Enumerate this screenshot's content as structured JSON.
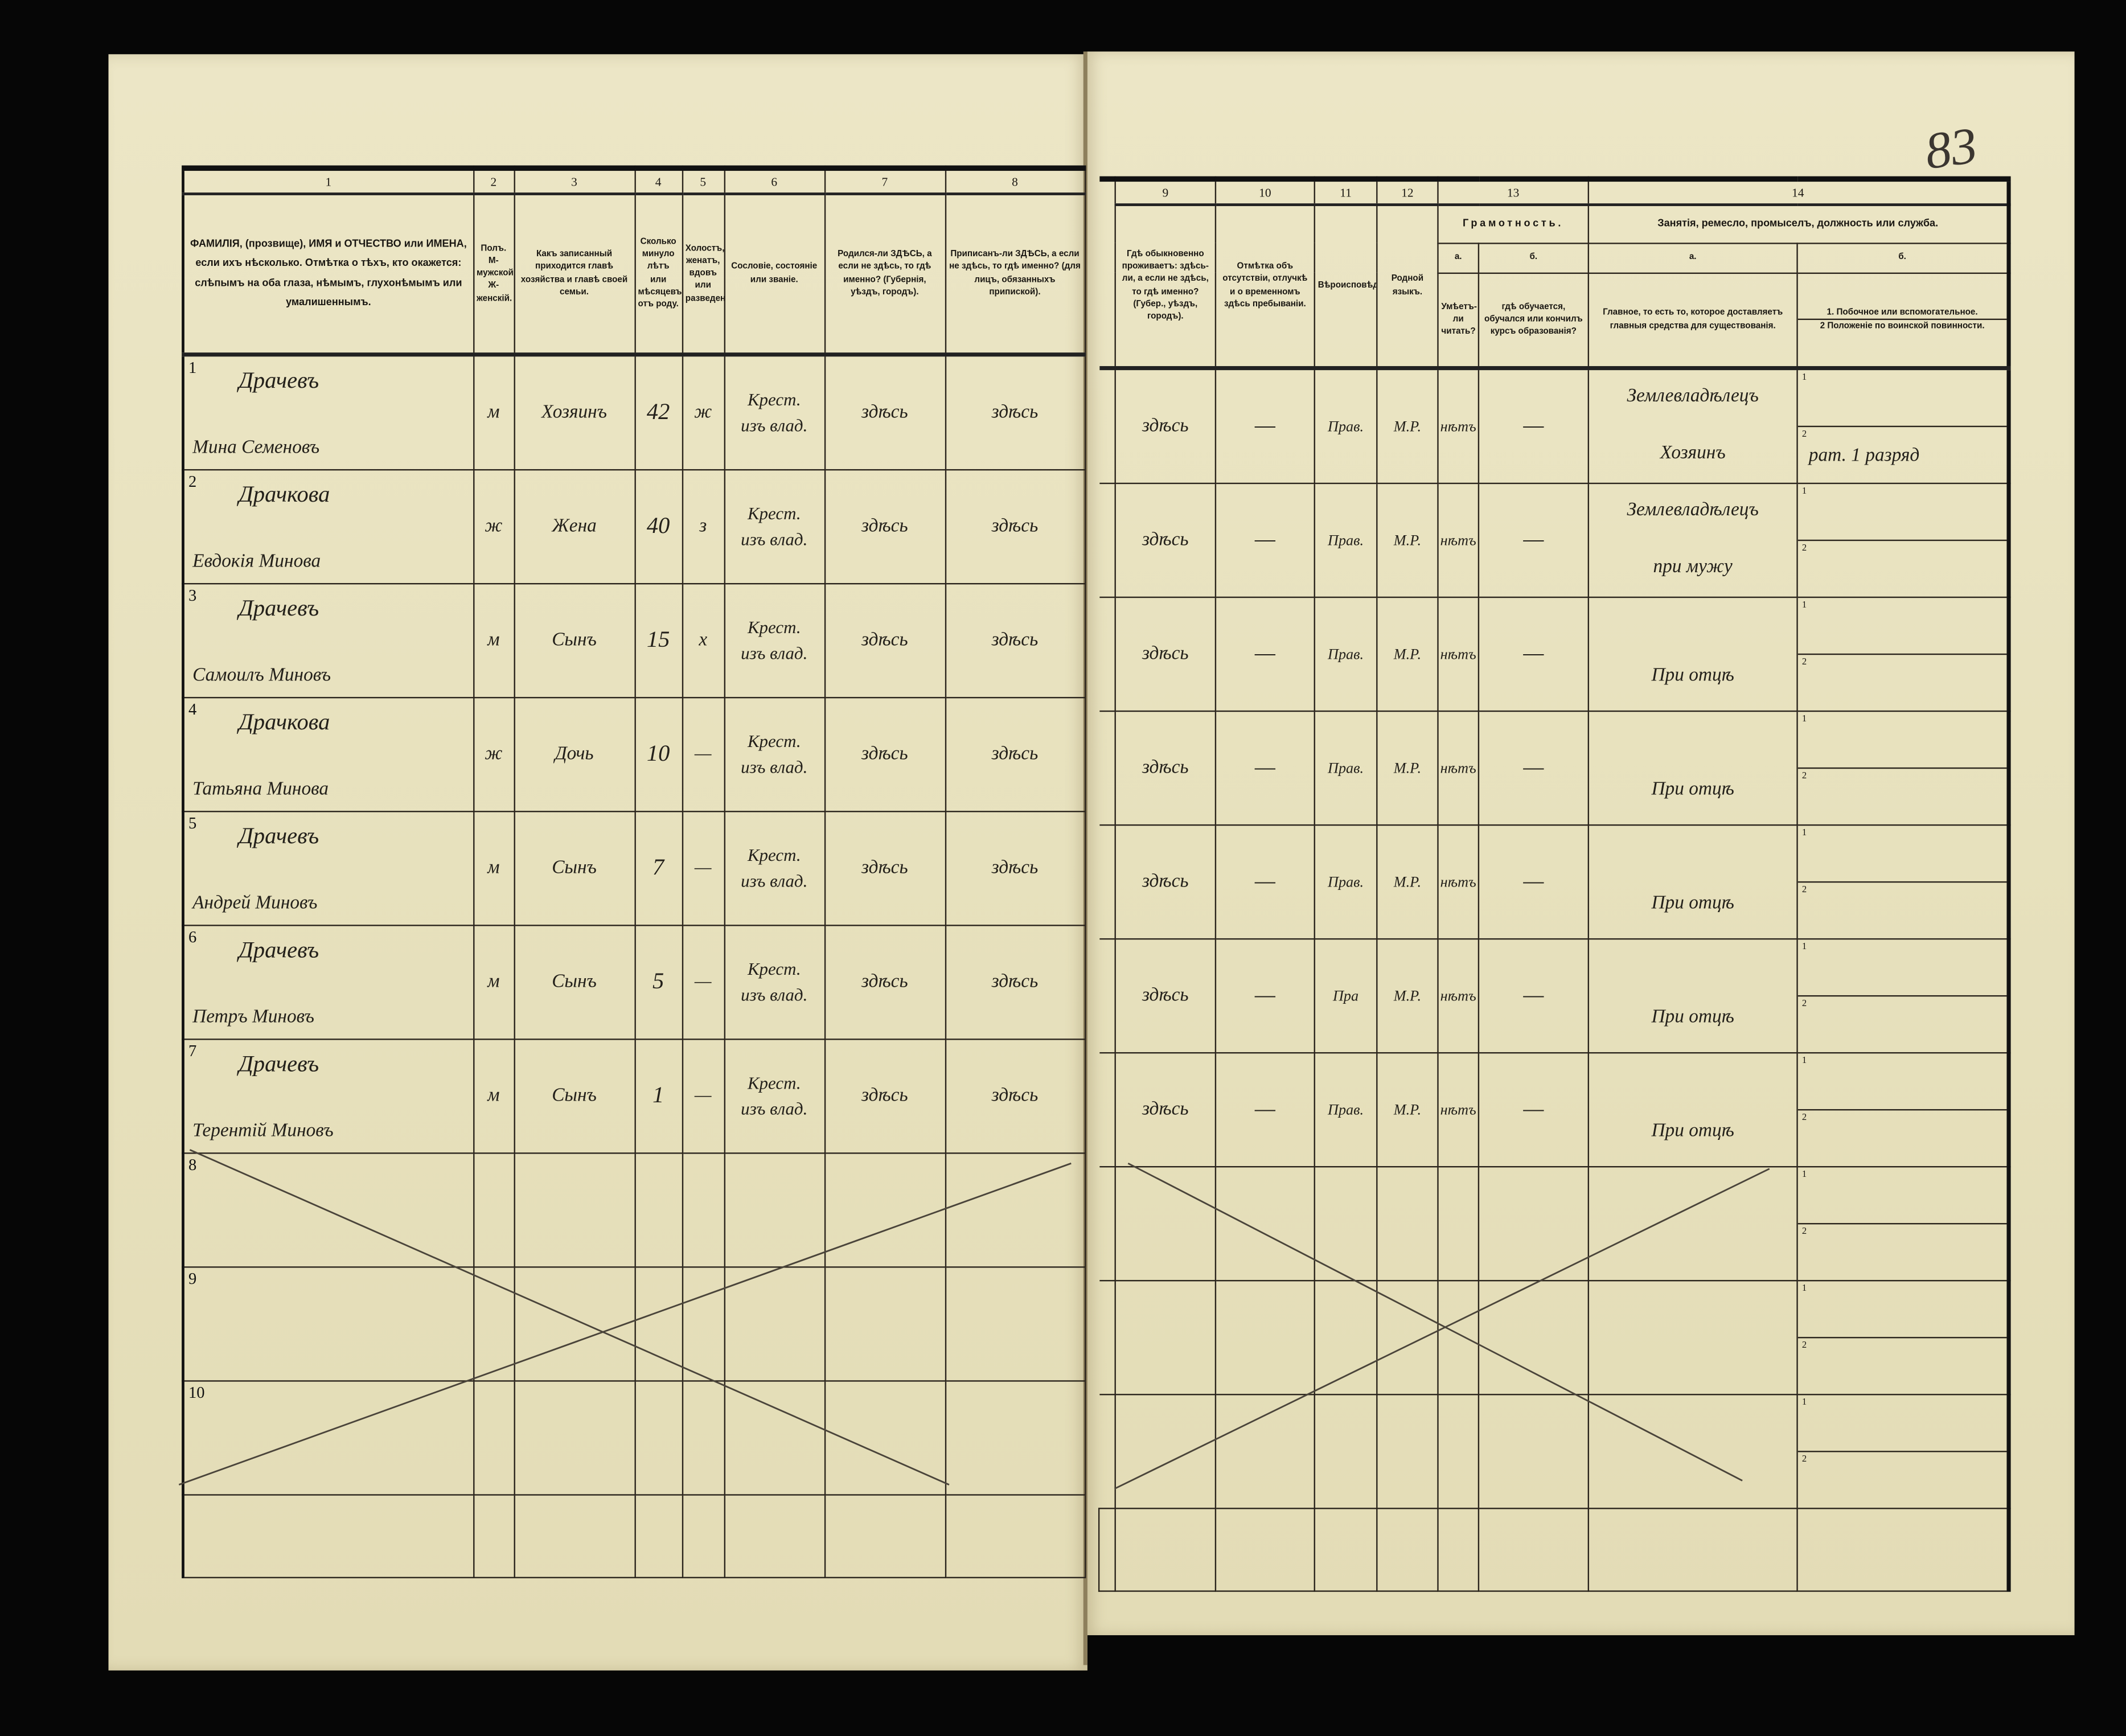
{
  "page_number": "83",
  "left_header": {
    "col_numbers": [
      "1",
      "2",
      "3",
      "4",
      "5",
      "6",
      "7",
      "8"
    ],
    "col1": "ФАМИЛІЯ, (прозвище), ИМЯ и ОТЧЕСТВО или ИМЕНА, если ихъ нѣсколько. Отмѣтка о тѣхъ, кто окажется: слѣпымъ на оба глаза, нѣмымъ, глухонѣмымъ или умалишеннымъ.",
    "col2": "Полъ. М-мужской. Ж-женскій.",
    "col3": "Какъ записанный приходится главѣ хозяйства и главѣ своей семьи.",
    "col4": "Сколько минуло лѣтъ или мѣсяцевъ отъ роду.",
    "col5": "Холостъ, женатъ, вдовъ или разведенъ.",
    "col6": "Сословіе, состояніе или званіе.",
    "col7": "Родился-ли ЗДѢСЬ, а если не здѣсь, то гдѣ именно? (Губернія, уѣздъ, городъ).",
    "col8": "Приписанъ-ли ЗДѢСЬ, а если не здѣсь, то гдѣ именно? (для лицъ, обязанныхъ припиской)."
  },
  "right_header": {
    "col_numbers": [
      "9",
      "10",
      "11",
      "12",
      "13",
      "14"
    ],
    "col9": "Гдѣ обыкновенно проживаетъ: здѣсь-ли, а если не здѣсь, то гдѣ именно? (Губер., уѣздъ, городъ).",
    "col10": "Отмѣтка объ отсутствіи, отлучкѣ и о временномъ здѣсь пребываніи.",
    "col11": "Вѣроисповѣданіе.",
    "col12": "Родной языкъ.",
    "col13": "Грамотность.",
    "col13a_label": "а.",
    "col13a": "Умѣетъ-ли читать?",
    "col13b_label": "б.",
    "col13b": "гдѣ обучается, обучался или кончилъ курсъ образованія?",
    "col14": "Занятія, ремесло, промыселъ, должность или служба.",
    "col14a_label": "а.",
    "col14a": "Главное, то есть то, которое доставляетъ главныя средства для существованія.",
    "col14b_label": "б.",
    "col14b_1": "1. Побочное или вспомогательное.",
    "col14b_2": "2 Положеніе по воинской повинности."
  },
  "sub_labels": [
    "1",
    "2"
  ],
  "rows": [
    {
      "n": "1",
      "surname": "Драчевъ",
      "given": "Мина Семеновъ",
      "sex": "м",
      "relation": "Хозяинъ",
      "age": "42",
      "marital": "ж",
      "estate": "Крест. изъ влад.",
      "born": "здѣсь",
      "registered": "здѣсь",
      "residence": "здѣсь",
      "absence": "—",
      "religion": "Прав.",
      "language": "М.Р.",
      "literate": "нѣтъ",
      "education": "—",
      "occupation": "Землевладѣлецъ",
      "occupation2": "Хозяинъ",
      "side_occupation": "",
      "military": "рат. 1 разряд"
    },
    {
      "n": "2",
      "surname": "Драчкова",
      "given": "Евдокія Минова",
      "sex": "ж",
      "relation": "Жена",
      "age": "40",
      "marital": "з",
      "estate": "Крест. изъ влад.",
      "born": "здѣсь",
      "registered": "здѣсь",
      "residence": "здѣсь",
      "absence": "—",
      "religion": "Прав.",
      "language": "М.Р.",
      "literate": "нѣтъ",
      "education": "—",
      "occupation": "Землевладѣлецъ",
      "occupation2": "при мужу",
      "side_occupation": "",
      "military": ""
    },
    {
      "n": "3",
      "surname": "Драчевъ",
      "given": "Самоилъ Миновъ",
      "sex": "м",
      "relation": "Сынъ",
      "age": "15",
      "marital": "х",
      "estate": "Крест. изъ влад.",
      "born": "здѣсь",
      "registered": "здѣсь",
      "residence": "здѣсь",
      "absence": "—",
      "religion": "Прав.",
      "language": "М.Р.",
      "literate": "нѣтъ",
      "education": "—",
      "occupation": "",
      "occupation2": "При отцѣ",
      "side_occupation": "",
      "military": ""
    },
    {
      "n": "4",
      "surname": "Драчкова",
      "given": "Татьяна Минова",
      "sex": "ж",
      "relation": "Дочь",
      "age": "10",
      "marital": "—",
      "estate": "Крест. изъ влад.",
      "born": "здѣсь",
      "registered": "здѣсь",
      "residence": "здѣсь",
      "absence": "—",
      "religion": "Прав.",
      "language": "М.Р.",
      "literate": "нѣтъ",
      "education": "—",
      "occupation": "",
      "occupation2": "При отцѣ",
      "side_occupation": "",
      "military": ""
    },
    {
      "n": "5",
      "surname": "Драчевъ",
      "given": "Андрей Миновъ",
      "sex": "м",
      "relation": "Сынъ",
      "age": "7",
      "marital": "—",
      "estate": "Крест. изъ влад.",
      "born": "здѣсь",
      "registered": "здѣсь",
      "residence": "здѣсь",
      "absence": "—",
      "religion": "Прав.",
      "language": "М.Р.",
      "literate": "нѣтъ",
      "education": "—",
      "occupation": "",
      "occupation2": "При отцѣ",
      "side_occupation": "",
      "military": ""
    },
    {
      "n": "6",
      "surname": "Драчевъ",
      "given": "Петръ Миновъ",
      "sex": "м",
      "relation": "Сынъ",
      "age": "5",
      "marital": "—",
      "estate": "Крест. изъ влад.",
      "born": "здѣсь",
      "registered": "здѣсь",
      "residence": "здѣсь",
      "absence": "—",
      "religion": "Пра",
      "language": "М.Р.",
      "literate": "нѣтъ",
      "education": "—",
      "occupation": "",
      "occupation2": "При отцѣ",
      "side_occupation": "",
      "military": ""
    },
    {
      "n": "7",
      "surname": "Драчевъ",
      "given": "Терентій Миновъ",
      "sex": "м",
      "relation": "Сынъ",
      "age": "1",
      "marital": "—",
      "estate": "Крест. изъ влад.",
      "born": "здѣсь",
      "registered": "здѣсь",
      "residence": "здѣсь",
      "absence": "—",
      "religion": "Прав.",
      "language": "М.Р.",
      "literate": "нѣтъ",
      "education": "—",
      "occupation": "",
      "occupation2": "При отцѣ",
      "side_occupation": "",
      "military": ""
    },
    {
      "n": "8"
    },
    {
      "n": "9"
    },
    {
      "n": "10"
    }
  ],
  "colors": {
    "paper": "#e8e2bf",
    "ink": "#23201a",
    "background": "#060606"
  }
}
